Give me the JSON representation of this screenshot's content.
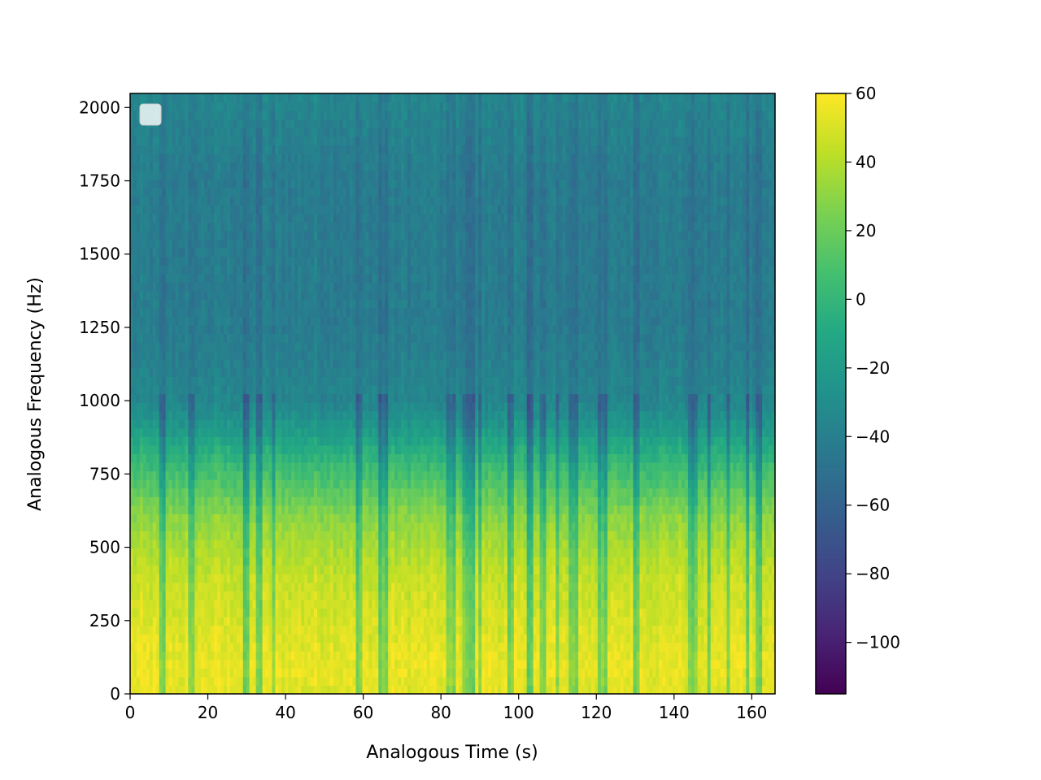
{
  "chart_data": {
    "type": "heatmap",
    "subtype": "spectrogram",
    "title": "",
    "xlabel": "Analogous Time (s)",
    "ylabel": "Analogous Frequency (Hz)",
    "xlim": [
      0,
      166
    ],
    "ylim": [
      0,
      2048
    ],
    "xticks": [
      0,
      20,
      40,
      60,
      80,
      100,
      120,
      140,
      160
    ],
    "yticks": [
      0,
      250,
      500,
      750,
      1000,
      1250,
      1500,
      1750,
      2000
    ],
    "colorbar": {
      "colormap": "viridis",
      "range": [
        -115,
        60
      ],
      "ticks": [
        60,
        40,
        20,
        0,
        -20,
        -40,
        -60,
        -80,
        -100
      ],
      "tick_labels": [
        "60",
        "40",
        "20",
        "0",
        "−20",
        "−40",
        "−60",
        "−80",
        "−100"
      ]
    },
    "power_profile_db": [
      {
        "freq_hz": 0,
        "db": 52
      },
      {
        "freq_hz": 100,
        "db": 55
      },
      {
        "freq_hz": 250,
        "db": 50
      },
      {
        "freq_hz": 400,
        "db": 45
      },
      {
        "freq_hz": 500,
        "db": 38
      },
      {
        "freq_hz": 600,
        "db": 30
      },
      {
        "freq_hz": 700,
        "db": 15
      },
      {
        "freq_hz": 800,
        "db": 0
      },
      {
        "freq_hz": 900,
        "db": -20
      },
      {
        "freq_hz": 1000,
        "db": -35
      },
      {
        "freq_hz": 1250,
        "db": -42
      },
      {
        "freq_hz": 1500,
        "db": -42
      },
      {
        "freq_hz": 1750,
        "db": -42
      },
      {
        "freq_hz": 2048,
        "db": -35
      }
    ],
    "dark_event_times_s": [
      8.5,
      16,
      30,
      33,
      37,
      59,
      65,
      66,
      82,
      83,
      86,
      88,
      90,
      98,
      103,
      106,
      110,
      114,
      115,
      121,
      122,
      130,
      144,
      145,
      149,
      154,
      159,
      162
    ],
    "legend": {
      "placement": "upper-left",
      "entries": []
    }
  }
}
